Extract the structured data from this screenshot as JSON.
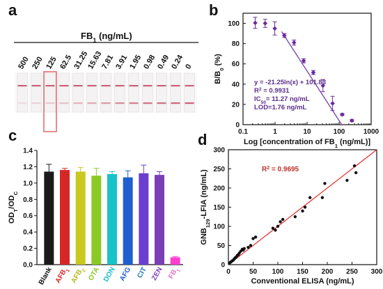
{
  "panels": {
    "a": "a",
    "b": "b",
    "c": "c",
    "d": "d"
  },
  "chart_data": [
    {
      "id": "a",
      "type": "other",
      "description_text": "",
      "header": "FB",
      "header_sub": "1",
      "header_unit": " (ng/mL)",
      "concentrations": [
        "500",
        "250",
        "125",
        "62.5",
        "31.25",
        "15.63",
        "7.81",
        "3.91",
        "1.95",
        "0.98",
        "0.49",
        "0.24",
        "0"
      ],
      "test_line_intensity": [
        0.15,
        0.2,
        0.25,
        0.3,
        0.38,
        0.45,
        0.55,
        0.65,
        0.72,
        0.78,
        0.82,
        0.86,
        0.9
      ],
      "control_line_intensity": [
        0.9,
        0.9,
        0.9,
        0.9,
        0.9,
        0.9,
        0.9,
        0.9,
        0.9,
        0.9,
        0.9,
        0.9,
        0.9
      ],
      "highlighted_index": 2,
      "colors": {
        "line": "#c8506a",
        "highlight": "#e06666",
        "strip": "#f4f2f2"
      }
    },
    {
      "id": "b",
      "type": "scatter",
      "xlabel_parts": [
        "Log [concentration of FB",
        "1",
        " (ng/mL)]"
      ],
      "ylabel_parts": [
        "B/B",
        "0",
        " (%)"
      ],
      "x_log": true,
      "xlim": [
        0.1,
        1000
      ],
      "ylim": [
        0,
        110
      ],
      "x_ticks": [
        0.1,
        1,
        10,
        100,
        1000
      ],
      "x_tick_labels": [
        "0.1",
        "1",
        "10",
        "100",
        "1000"
      ],
      "y_ticks": [
        0,
        20,
        40,
        60,
        80,
        100
      ],
      "y_tick_labels": [
        "0",
        "20",
        "40",
        "60",
        "80",
        "100"
      ],
      "points": [
        {
          "x": 0.24,
          "y": 100.5,
          "err": 5.5
        },
        {
          "x": 0.49,
          "y": 100.0,
          "err": 4.0
        },
        {
          "x": 0.98,
          "y": 95.0,
          "err": 6.5
        },
        {
          "x": 1.95,
          "y": 88.0,
          "err": 2.0
        },
        {
          "x": 3.91,
          "y": 81.0,
          "err": 2.5
        },
        {
          "x": 7.81,
          "y": 63.0,
          "err": 2.0
        },
        {
          "x": 15.63,
          "y": 51.5,
          "err": 2.0
        },
        {
          "x": 31.25,
          "y": 38.5,
          "err": 6.0
        },
        {
          "x": 62.5,
          "y": 21.0,
          "err": 7.0
        },
        {
          "x": 125,
          "y": 10.0,
          "err": 1.0
        },
        {
          "x": 250,
          "y": 4.0,
          "err": 1.0
        }
      ],
      "fit": {
        "slope": -21.25,
        "intercept": 101.83,
        "x_from": 1.6,
        "x_to": 125
      },
      "annotations": [
        {
          "parts": [
            "y = -21.25ln(x) + 101.83"
          ]
        },
        {
          "parts": [
            "R",
            "2",
            " = 0.9931"
          ],
          "sup": [
            1
          ]
        },
        {
          "parts": [
            "IC",
            "50",
            "= 11.27 ng/mL"
          ],
          "sub": [
            1
          ]
        },
        {
          "parts": [
            "LOD=1.76 ng/mL"
          ]
        }
      ],
      "colors": {
        "marker": "#6a2a9a",
        "line": "#7a4bb0",
        "text": "#5a2d8a"
      }
    },
    {
      "id": "c",
      "type": "bar",
      "ylabel_parts": [
        "OD",
        "T",
        "/OD",
        "C"
      ],
      "ylim": [
        0,
        1.4
      ],
      "y_ticks": [
        0.0,
        0.2,
        0.4,
        0.6,
        0.8,
        1.0,
        1.2,
        1.4
      ],
      "y_tick_labels": [
        "0.0",
        "0.2",
        "0.4",
        "0.6",
        "0.8",
        "1.0",
        "1.2",
        "1.4"
      ],
      "categories": [
        {
          "parts": [
            "Blank"
          ],
          "color": "#111111"
        },
        {
          "parts": [
            "AFB",
            "1"
          ],
          "color": "#d62728"
        },
        {
          "parts": [
            "AFB",
            "2"
          ],
          "color": "#b8b81c"
        },
        {
          "parts": [
            "OTA"
          ],
          "color": "#8ac926"
        },
        {
          "parts": [
            "DON"
          ],
          "color": "#17becf"
        },
        {
          "parts": [
            "AFG"
          ],
          "color": "#1f5fd0"
        },
        {
          "parts": [
            "CIT"
          ],
          "color": "#1f77b4"
        },
        {
          "parts": [
            "ZEN"
          ],
          "color": "#7b3fb5"
        },
        {
          "parts": [
            "FB",
            "1"
          ],
          "color": "#e377c2"
        }
      ],
      "values": [
        1.14,
        1.16,
        1.14,
        1.09,
        1.11,
        1.07,
        1.12,
        1.1,
        0.09
      ],
      "errors": [
        0.09,
        0.02,
        0.05,
        0.09,
        0.03,
        0.08,
        0.1,
        0.04,
        0.01
      ],
      "bar_colors": [
        "#1a1a1a",
        "#d62728",
        "#c8c81e",
        "#8ac926",
        "#19c2c9",
        "#1f5fd0",
        "#6a3fd0",
        "#7b3fb5",
        "#ff3fd0"
      ]
    },
    {
      "id": "d",
      "type": "scatter",
      "xlabel": "Conventional ELISA (ng/mL)",
      "ylabel_parts": [
        "GNB",
        "129",
        "-LFIA (ng/mL)"
      ],
      "xlim": [
        0,
        300
      ],
      "ylim": [
        0,
        300
      ],
      "x_ticks": [
        0,
        50,
        100,
        150,
        200,
        250,
        300
      ],
      "x_tick_labels": [
        "0",
        "50",
        "100",
        "150",
        "200",
        "250",
        "300"
      ],
      "y_ticks": [
        0,
        50,
        100,
        150,
        200,
        250,
        300
      ],
      "y_tick_labels": [
        "0",
        "50",
        "100",
        "150",
        "200",
        "250",
        "300"
      ],
      "r2_parts": [
        "R",
        "2",
        " = 0.9695"
      ],
      "fit": {
        "slope": 1.0,
        "intercept": 0,
        "x_from": 0,
        "x_to": 300
      },
      "points": [
        [
          2,
          4
        ],
        [
          4,
          6
        ],
        [
          6,
          8
        ],
        [
          8,
          10
        ],
        [
          10,
          12
        ],
        [
          12,
          15
        ],
        [
          14,
          18
        ],
        [
          16,
          20
        ],
        [
          18,
          24
        ],
        [
          20,
          26
        ],
        [
          22,
          30
        ],
        [
          25,
          35
        ],
        [
          28,
          40
        ],
        [
          30,
          38
        ],
        [
          32,
          42
        ],
        [
          40,
          45
        ],
        [
          45,
          50
        ],
        [
          50,
          68
        ],
        [
          55,
          72
        ],
        [
          90,
          95
        ],
        [
          95,
          90
        ],
        [
          100,
          100
        ],
        [
          105,
          112
        ],
        [
          110,
          118
        ],
        [
          135,
          125
        ],
        [
          150,
          140
        ],
        [
          155,
          150
        ],
        [
          165,
          175
        ],
        [
          190,
          175
        ],
        [
          195,
          212
        ],
        [
          240,
          220
        ],
        [
          255,
          258
        ],
        [
          258,
          240
        ]
      ],
      "colors": {
        "marker": "#111111",
        "line": "#e03030",
        "r2": "#c0302a"
      }
    }
  ]
}
